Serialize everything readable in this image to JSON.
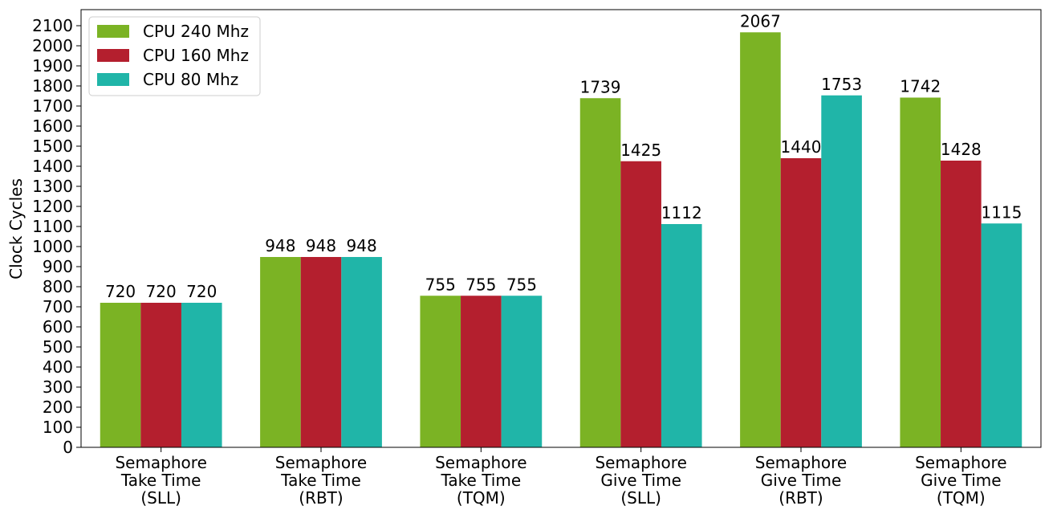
{
  "chart_data": {
    "type": "bar",
    "title": "",
    "xlabel": "",
    "ylabel": "Clock Cycles",
    "ylim": [
      0,
      2180
    ],
    "yticks": [
      0,
      100,
      200,
      300,
      400,
      500,
      600,
      700,
      800,
      900,
      1000,
      1100,
      1200,
      1300,
      1400,
      1500,
      1600,
      1700,
      1800,
      1900,
      2000,
      2100
    ],
    "categories": [
      [
        "Semaphore",
        "Take Time",
        "(SLL)"
      ],
      [
        "Semaphore",
        "Take Time",
        "(RBT)"
      ],
      [
        "Semaphore",
        "Take Time",
        "(TQM)"
      ],
      [
        "Semaphore",
        "Give Time",
        "(SLL)"
      ],
      [
        "Semaphore",
        "Give Time",
        "(RBT)"
      ],
      [
        "Semaphore",
        "Give Time",
        "(TQM)"
      ]
    ],
    "series": [
      {
        "name": "CPU 240 Mhz",
        "color": "#7bb324",
        "values": [
          720,
          948,
          755,
          1739,
          2067,
          1742
        ]
      },
      {
        "name": "CPU 160 Mhz",
        "color": "#b41f2e",
        "values": [
          720,
          948,
          755,
          1425,
          1440,
          1428
        ]
      },
      {
        "name": "CPU 80 Mhz",
        "color": "#20b5a8",
        "values": [
          720,
          948,
          755,
          1112,
          1753,
          1115
        ]
      }
    ],
    "legend_position": "top-left",
    "grid": false,
    "data_labels": true
  }
}
